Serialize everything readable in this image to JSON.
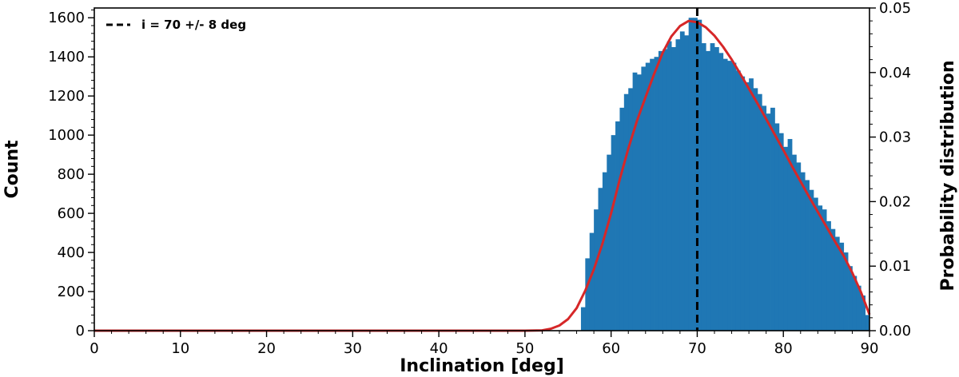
{
  "chart_data": {
    "type": "bar",
    "xlabel": "Inclination [deg]",
    "ylabel": "Count",
    "y2label": "Probability distribution",
    "xlim": [
      0,
      90
    ],
    "ylim": [
      0,
      1650
    ],
    "y2lim": [
      0,
      0.05
    ],
    "xticks": [
      "0",
      "10",
      "20",
      "30",
      "40",
      "50",
      "60",
      "70",
      "80",
      "90"
    ],
    "yticks": [
      "0",
      "200",
      "400",
      "600",
      "800",
      "1000",
      "1200",
      "1400",
      "1600"
    ],
    "y2ticks": [
      "0.00",
      "0.01",
      "0.02",
      "0.03",
      "0.04",
      "0.05"
    ],
    "grid": false,
    "legend_position": "top-left",
    "colors": {
      "bars": "#1f77b4",
      "curve": "#d62728",
      "vline": "#000000"
    },
    "histogram": {
      "name": "Count",
      "bin_width": 0.5,
      "bin_starts": [
        56.5,
        57,
        57.5,
        58,
        58.5,
        59,
        59.5,
        60,
        60.5,
        61,
        61.5,
        62,
        62.5,
        63,
        63.5,
        64,
        64.5,
        65,
        65.5,
        66,
        66.5,
        67,
        67.5,
        68,
        68.5,
        69,
        69.5,
        70,
        70.5,
        71,
        71.5,
        72,
        72.5,
        73,
        73.5,
        74,
        74.5,
        75,
        75.5,
        76,
        76.5,
        77,
        77.5,
        78,
        78.5,
        79,
        79.5,
        80,
        80.5,
        81,
        81.5,
        82,
        82.5,
        83,
        83.5,
        84,
        84.5,
        85,
        85.5,
        86,
        86.5,
        87,
        87.5,
        88,
        88.5,
        89,
        89.5
      ],
      "counts": [
        120,
        370,
        500,
        620,
        730,
        810,
        900,
        1000,
        1070,
        1140,
        1210,
        1240,
        1320,
        1310,
        1350,
        1370,
        1390,
        1400,
        1430,
        1440,
        1480,
        1450,
        1490,
        1530,
        1510,
        1600,
        1600,
        1590,
        1470,
        1430,
        1470,
        1450,
        1420,
        1390,
        1380,
        1370,
        1330,
        1300,
        1270,
        1290,
        1240,
        1210,
        1150,
        1110,
        1140,
        1060,
        1010,
        940,
        980,
        900,
        860,
        810,
        770,
        720,
        680,
        640,
        620,
        560,
        520,
        480,
        450,
        400,
        330,
        280,
        230,
        180,
        80
      ]
    },
    "pdf_curve": {
      "name": "Probability distribution",
      "x": [
        0,
        5,
        10,
        15,
        20,
        25,
        30,
        35,
        40,
        45,
        50,
        52,
        53,
        54,
        55,
        56,
        57,
        58,
        59,
        60,
        61,
        62,
        63,
        64,
        65,
        66,
        67,
        68,
        69,
        70,
        71,
        72,
        73,
        74,
        75,
        76,
        77,
        78,
        79,
        80,
        81,
        82,
        83,
        84,
        85,
        86,
        87,
        88,
        89,
        90
      ],
      "y": [
        0,
        0,
        0,
        0,
        0,
        0,
        0,
        0,
        0,
        0,
        0,
        5e-05,
        0.0003,
        0.0008,
        0.0018,
        0.0035,
        0.0062,
        0.0095,
        0.0135,
        0.0182,
        0.0234,
        0.0282,
        0.0325,
        0.0362,
        0.0398,
        0.0431,
        0.0456,
        0.0472,
        0.048,
        0.0478,
        0.047,
        0.0457,
        0.044,
        0.042,
        0.0398,
        0.0375,
        0.0352,
        0.0328,
        0.0304,
        0.028,
        0.0255,
        0.0231,
        0.0207,
        0.0184,
        0.0161,
        0.0138,
        0.0116,
        0.009,
        0.006,
        0.0025
      ]
    },
    "vline": {
      "x": 70,
      "legend_label": "i = 70 +/- 8 deg"
    }
  }
}
